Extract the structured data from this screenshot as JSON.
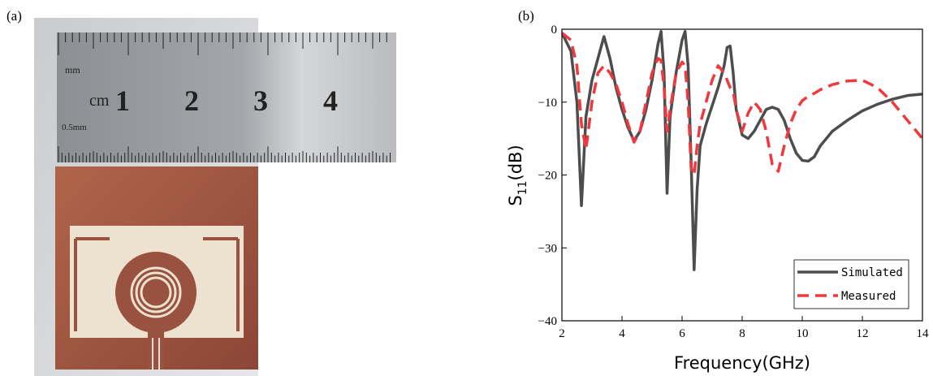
{
  "photo": {
    "label": "(a)",
    "ruler": {
      "unit_mm": "mm",
      "unit_cm": "cm",
      "numbers": [
        "1",
        "2",
        "3",
        "4"
      ],
      "fine": "0.5mm"
    }
  },
  "chart_data": {
    "type": "line",
    "label": "(b)",
    "xlabel": "Frequency(GHz)",
    "ylabel": {
      "main": "S",
      "sub": "11",
      "unit": "(dB)"
    },
    "xlim": [
      2,
      14
    ],
    "xticks": [
      2,
      4,
      6,
      8,
      10,
      12,
      14
    ],
    "ylim": [
      -40,
      0
    ],
    "yticks": [
      {
        "value": -40,
        "label": "−40"
      },
      {
        "value": -30,
        "label": "−30"
      },
      {
        "value": -20,
        "label": "−20"
      },
      {
        "value": -10,
        "label": "−10"
      },
      0
    ],
    "grid": false,
    "legend": "lower right",
    "x": [
      2,
      2.3,
      2.5,
      2.65,
      2.8,
      3.0,
      3.2,
      3.4,
      3.6,
      3.8,
      4.0,
      4.2,
      4.4,
      4.6,
      4.8,
      5.0,
      5.2,
      5.3,
      5.4,
      5.5,
      5.6,
      5.8,
      6.0,
      6.1,
      6.2,
      6.3,
      6.4,
      6.5,
      6.6,
      6.8,
      7.0,
      7.2,
      7.4,
      7.5,
      7.6,
      7.7,
      7.8,
      8.0,
      8.2,
      8.4,
      8.6,
      8.8,
      9.0,
      9.2,
      9.4,
      9.6,
      9.8,
      10.0,
      10.2,
      10.4,
      10.6,
      11.0,
      11.5,
      12,
      12.5,
      13,
      13.5,
      14
    ],
    "series": [
      {
        "name": "Simulated",
        "color": "#4d4d4d",
        "dash": "solid",
        "values": [
          -0.5,
          -3,
          -10,
          -24.2,
          -12,
          -7,
          -4,
          -1,
          -4,
          -8,
          -11,
          -13.5,
          -15.3,
          -14,
          -11,
          -7,
          -2,
          -0.3,
          -6,
          -22.5,
          -12,
          -6,
          -1.5,
          -0.3,
          -5,
          -18,
          -33,
          -22,
          -16,
          -13,
          -10.5,
          -8,
          -5,
          -2.5,
          -2.3,
          -6,
          -11,
          -14.5,
          -15,
          -14,
          -12.5,
          -11,
          -10.7,
          -11,
          -12.5,
          -15,
          -17,
          -18,
          -18.1,
          -17.5,
          -16,
          -14,
          -12.5,
          -11.2,
          -10.3,
          -9.6,
          -9.1,
          -8.9
        ]
      },
      {
        "name": "Measured",
        "color": "#f0393f",
        "dash": "dashed",
        "values": [
          -0.5,
          -1.5,
          -5,
          -13,
          -16.5,
          -10,
          -6,
          -5,
          -6,
          -7.5,
          -10,
          -13,
          -15.5,
          -14,
          -10,
          -6,
          -4,
          -4.3,
          -8,
          -14,
          -11,
          -6,
          -4.5,
          -5,
          -10,
          -19,
          -20,
          -16,
          -13,
          -10,
          -7,
          -5,
          -6,
          -7,
          -8,
          -8.5,
          -11,
          -14,
          -11.5,
          -10,
          -11,
          -14,
          -18.5,
          -19.5,
          -16,
          -13,
          -11,
          -9.8,
          -9.2,
          -8.8,
          -8.3,
          -7.6,
          -7.1,
          -7,
          -8,
          -10,
          -12.5,
          -15
        ]
      }
    ]
  }
}
